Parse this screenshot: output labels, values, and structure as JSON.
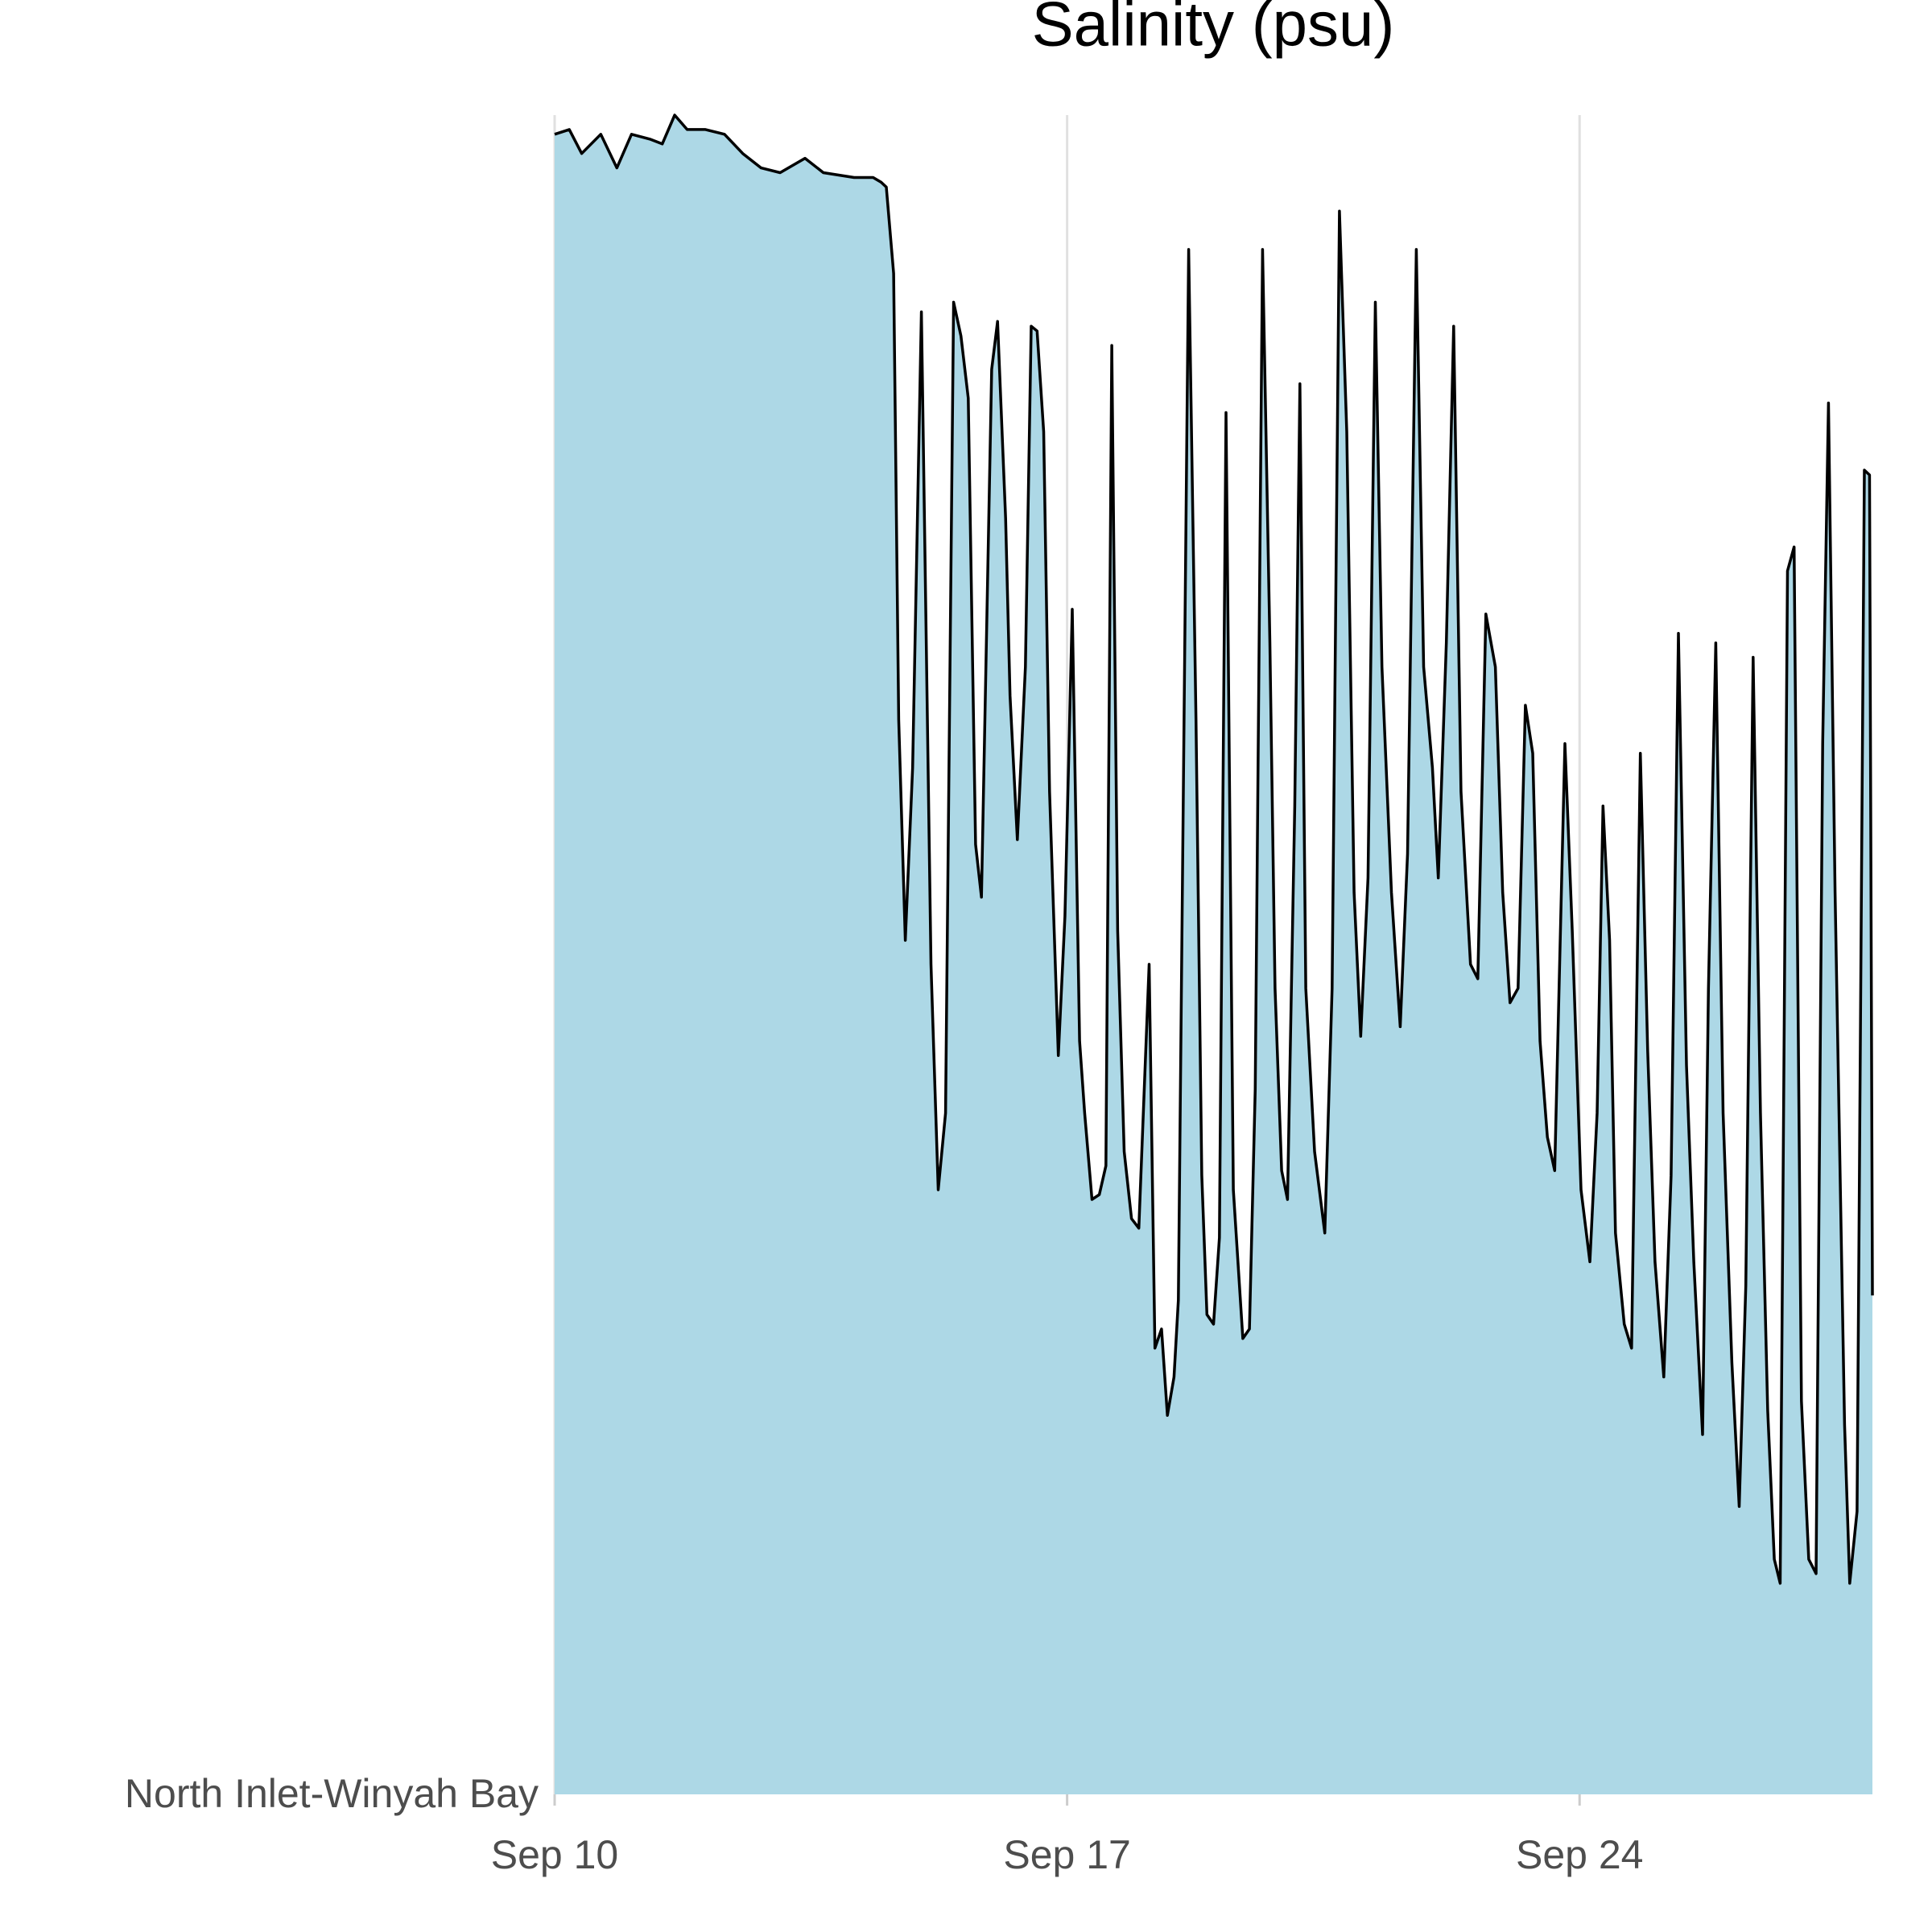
{
  "chart_data": {
    "type": "area",
    "title": "Salinity (psu)",
    "x": [
      10.0,
      10.2,
      10.37,
      10.63,
      10.85,
      11.05,
      11.3,
      11.47,
      11.64,
      11.81,
      12.06,
      12.32,
      12.57,
      12.82,
      13.08,
      13.42,
      13.67,
      14.09,
      14.35,
      14.46,
      14.53,
      14.63,
      14.7,
      14.79,
      14.89,
      15.01,
      15.14,
      15.24,
      15.34,
      15.45,
      15.55,
      15.65,
      15.75,
      15.83,
      15.97,
      16.05,
      16.16,
      16.22,
      16.32,
      16.43,
      16.51,
      16.59,
      16.68,
      16.76,
      16.88,
      16.97,
      17.07,
      17.17,
      17.24,
      17.34,
      17.44,
      17.53,
      17.61,
      17.69,
      17.78,
      17.88,
      17.98,
      18.12,
      18.2,
      18.29,
      18.37,
      18.46,
      18.52,
      18.66,
      18.76,
      18.84,
      18.91,
      19.0,
      19.08,
      19.17,
      19.27,
      19.4,
      19.49,
      19.57,
      19.67,
      19.77,
      19.84,
      19.93,
      20.01,
      20.11,
      20.18,
      20.26,
      20.38,
      20.52,
      20.62,
      20.72,
      20.82,
      20.92,
      21.01,
      21.11,
      21.21,
      21.3,
      21.43,
      21.55,
      21.65,
      21.77,
      21.87,
      21.99,
      22.07,
      22.18,
      22.28,
      22.38,
      22.51,
      22.61,
      22.72,
      22.85,
      22.95,
      23.05,
      23.16,
      23.26,
      23.36,
      23.46,
      23.56,
      23.66,
      23.8,
      23.9,
      24.02,
      24.14,
      24.24,
      24.32,
      24.41,
      24.49,
      24.61,
      24.71,
      24.83,
      24.93,
      25.03,
      25.15,
      25.25,
      25.35,
      25.46,
      25.56,
      25.68,
      25.76,
      25.86,
      25.96,
      26.08,
      26.18,
      26.27,
      26.37,
      26.47,
      26.57,
      26.66,
      26.74,
      26.84,
      26.93,
      27.03,
      27.13,
      27.23,
      27.32,
      27.4,
      27.49,
      27.62,
      27.69,
      27.79,
      27.89,
      27.96,
      28.0
    ],
    "series": [
      {
        "name": "North Inlet-Winyah Bay",
        "color": "#add8e6",
        "line_color": "#000000",
        "values": [
          34.6,
          34.7,
          34.2,
          34.6,
          33.9,
          34.6,
          34.5,
          34.4,
          35.0,
          34.7,
          34.7,
          34.6,
          34.2,
          33.9,
          33.8,
          34.1,
          33.8,
          33.7,
          33.7,
          33.6,
          33.5,
          31.7,
          22.4,
          17.8,
          21.4,
          30.9,
          17.3,
          12.6,
          14.2,
          31.1,
          30.4,
          29.1,
          19.8,
          18.7,
          29.7,
          30.7,
          26.6,
          22.9,
          19.9,
          23.5,
          30.6,
          30.5,
          28.4,
          20.9,
          15.4,
          18.3,
          24.7,
          15.7,
          14.2,
          12.4,
          12.5,
          13.1,
          30.2,
          18.0,
          13.4,
          12.0,
          11.8,
          17.3,
          9.3,
          9.7,
          7.9,
          8.7,
          10.3,
          32.2,
          22.4,
          12.9,
          10.0,
          9.8,
          11.6,
          28.8,
          12.6,
          9.5,
          9.7,
          14.7,
          32.2,
          24.0,
          16.8,
          13.0,
          12.4,
          20.6,
          29.4,
          16.8,
          13.4,
          11.7,
          16.8,
          33.0,
          28.4,
          18.8,
          15.8,
          19.1,
          31.1,
          23.5,
          18.8,
          16.0,
          19.6,
          32.2,
          23.5,
          21.4,
          19.1,
          24.0,
          30.6,
          20.9,
          17.3,
          17.0,
          24.6,
          23.5,
          18.8,
          16.5,
          16.8,
          22.7,
          21.7,
          15.7,
          13.7,
          13.0,
          21.9,
          18.0,
          12.6,
          11.1,
          14.2,
          20.6,
          17.8,
          11.7,
          9.8,
          9.3,
          21.7,
          15.5,
          11.1,
          8.7,
          12.9,
          24.2,
          15.2,
          11.1,
          7.5,
          16.8,
          24.0,
          14.2,
          9.0,
          6.0,
          10.6,
          23.7,
          14.2,
          8.0,
          4.9,
          4.4,
          25.5,
          26.0,
          8.2,
          4.9,
          4.6,
          21.9,
          29.0,
          18.8,
          7.7,
          4.4,
          5.9,
          27.6,
          27.5,
          10.4
        ]
      }
    ],
    "xlim": [
      10,
      28
    ],
    "xticks": [
      {
        "value": 10,
        "label": "Sep 10"
      },
      {
        "value": 17,
        "label": "Sep 17"
      },
      {
        "value": 24,
        "label": "Sep 24"
      }
    ],
    "ylim": [
      0,
      35
    ],
    "grid": true
  }
}
